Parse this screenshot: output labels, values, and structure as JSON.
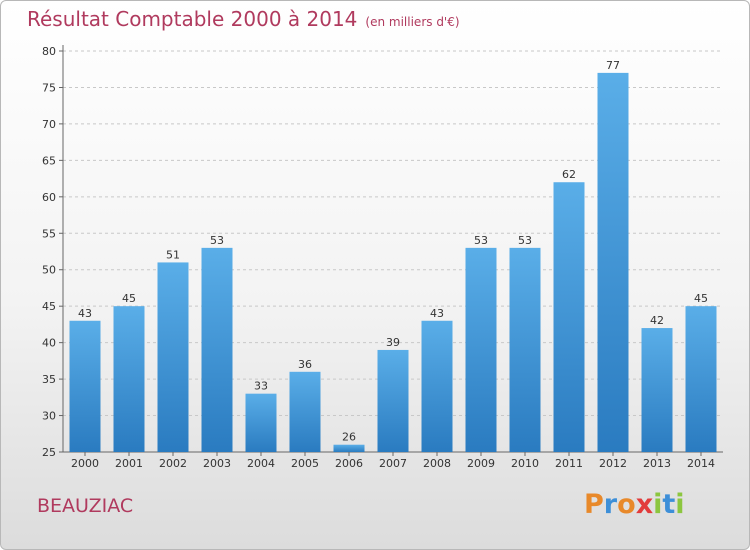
{
  "header": {
    "title": "Résultat Comptable 2000 à 2014",
    "unit": "(en milliers d'€)"
  },
  "footer": {
    "town": "BEAUZIAC",
    "logo_text": "Proxiti"
  },
  "colors": {
    "bar_light": "#5aaee8",
    "bar_dark": "#2a7bc0",
    "title": "#b03a5e"
  },
  "chart_data": {
    "type": "bar",
    "title": "Résultat Comptable 2000 à 2014",
    "subtitle": "(en milliers d'€)",
    "categories": [
      "2000",
      "2001",
      "2002",
      "2003",
      "2004",
      "2005",
      "2006",
      "2007",
      "2008",
      "2009",
      "2010",
      "2011",
      "2012",
      "2013",
      "2014"
    ],
    "values": [
      43,
      45,
      51,
      53,
      33,
      36,
      26,
      39,
      43,
      53,
      53,
      62,
      77,
      42,
      45
    ],
    "ylim": [
      25,
      80
    ],
    "yticks": [
      25,
      30,
      35,
      40,
      45,
      50,
      55,
      60,
      65,
      70,
      75,
      80
    ],
    "grid": true,
    "xlabel": "",
    "ylabel": ""
  }
}
